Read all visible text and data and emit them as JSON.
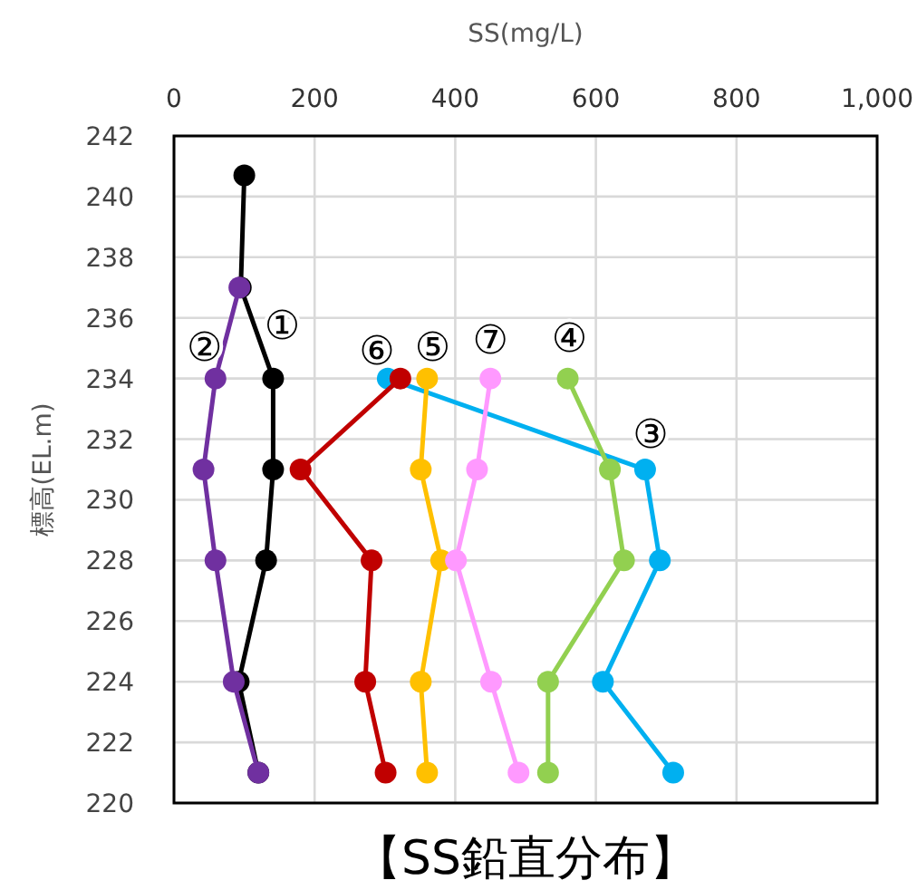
{
  "chart_data": {
    "type": "line",
    "title": "【SS鉛直分布】",
    "xlabel": "SS(mg/L)",
    "ylabel": "標高(EL.m)",
    "xlim": [
      0,
      1000
    ],
    "xticks": [
      0,
      200,
      400,
      600,
      800,
      {
        "value": 1000,
        "label": "1,000"
      }
    ],
    "ylim": [
      220,
      242
    ],
    "yticks": [
      220,
      222,
      224,
      226,
      228,
      230,
      232,
      234,
      236,
      238,
      240,
      242
    ],
    "grid": true,
    "marker": "circle",
    "line_style": "solid",
    "series": [
      {
        "color": "#000000",
        "x": [
          100,
          95,
          141,
          141,
          131,
          92,
          120
        ],
        "values": [
          240.7,
          237,
          234,
          231,
          228,
          224,
          221
        ]
      },
      {
        "color": "#7030a0",
        "x": [
          93,
          59,
          42,
          59,
          85,
          120
        ],
        "values": [
          237,
          234,
          231,
          228,
          224,
          221
        ]
      },
      {
        "color": "#00b0f0",
        "x": [
          304,
          670,
          691,
          610,
          710
        ],
        "values": [
          234,
          231,
          228,
          224,
          221
        ]
      },
      {
        "color": "#92d050",
        "x": [
          560,
          620,
          640,
          532,
          532
        ],
        "values": [
          234,
          231,
          228,
          224,
          221
        ]
      },
      {
        "color": "#ffc000",
        "x": [
          360,
          351,
          380,
          351,
          360
        ],
        "values": [
          234,
          231,
          228,
          224,
          221
        ]
      },
      {
        "color": "#c00000",
        "x": [
          322,
          180,
          281,
          272,
          301
        ],
        "values": [
          234,
          231,
          228,
          224,
          221
        ]
      },
      {
        "color": "#ff99ff",
        "x": [
          450,
          431,
          401,
          451,
          490
        ],
        "values": [
          234,
          231,
          228,
          224,
          221
        ]
      }
    ],
    "annotations": [
      "①",
      "②",
      "③",
      "④",
      "⑤",
      "⑥",
      "⑦"
    ]
  }
}
